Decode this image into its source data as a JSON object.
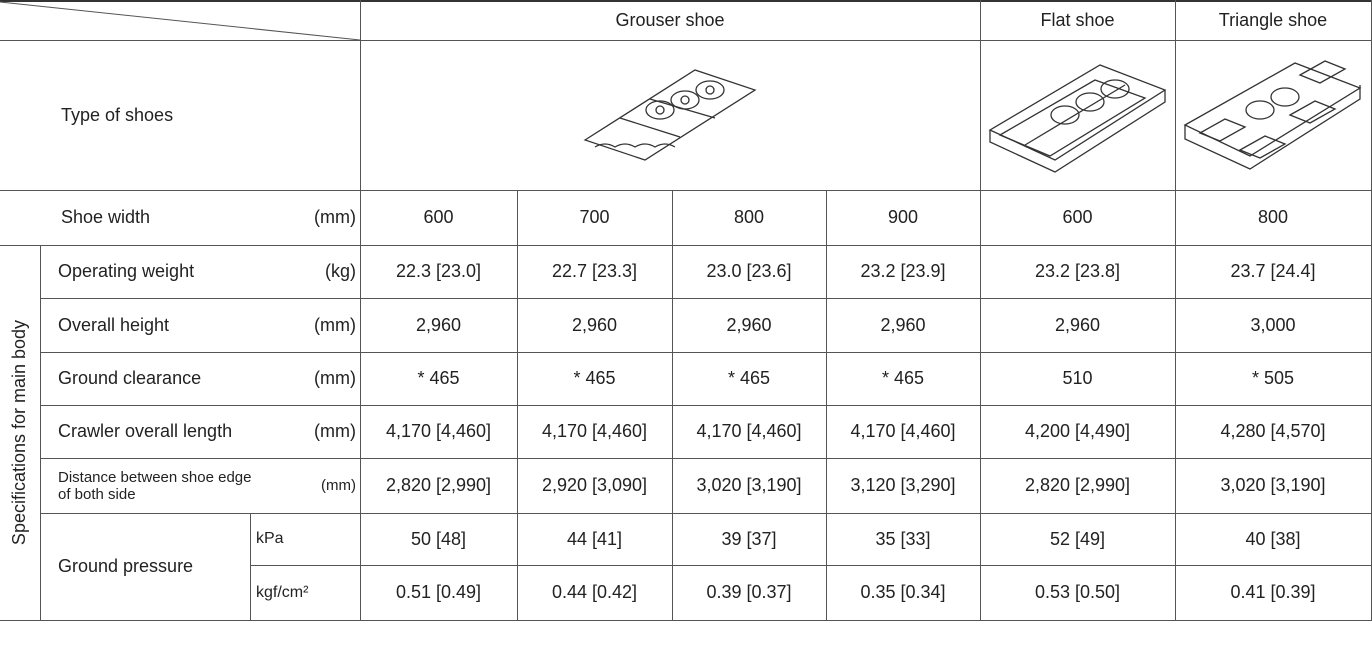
{
  "headers": {
    "grouser": "Grouser shoe",
    "flat": "Flat shoe",
    "triangle": "Triangle shoe"
  },
  "type_label": "Type of shoes",
  "shoe_width": {
    "label": "Shoe width",
    "unit": "(mm)",
    "values": [
      "600",
      "700",
      "800",
      "900",
      "600",
      "800"
    ]
  },
  "side_label": "Specifications for main body",
  "rows": [
    {
      "label": "Operating weight",
      "unit": "(kg)",
      "values": [
        "22.3 [23.0]",
        "22.7 [23.3]",
        "23.0 [23.6]",
        "23.2 [23.9]",
        "23.2 [23.8]",
        "23.7 [24.4]"
      ]
    },
    {
      "label": "Overall height",
      "unit": "(mm)",
      "values": [
        "2,960",
        "2,960",
        "2,960",
        "2,960",
        "2,960",
        "3,000"
      ]
    },
    {
      "label": "Ground clearance",
      "unit": "(mm)",
      "values": [
        "* 465",
        "* 465",
        "* 465",
        "* 465",
        "510",
        "* 505"
      ]
    },
    {
      "label": "Crawler overall length",
      "unit": "(mm)",
      "values": [
        "4,170 [4,460]",
        "4,170 [4,460]",
        "4,170 [4,460]",
        "4,170 [4,460]",
        "4,200 [4,490]",
        "4,280 [4,570]"
      ]
    },
    {
      "label": "Distance between shoe edge of both side",
      "unit": "(mm)",
      "values": [
        "2,820 [2,990]",
        "2,920 [3,090]",
        "3,020 [3,190]",
        "3,120 [3,290]",
        "2,820 [2,990]",
        "3,020 [3,190]"
      ]
    }
  ],
  "ground_pressure": {
    "label": "Ground pressure",
    "rows": [
      {
        "unit": "kPa",
        "values": [
          "50 [48]",
          "44 [41]",
          "39 [37]",
          "35 [33]",
          "52 [49]",
          "40 [38]"
        ]
      },
      {
        "unit": "kgf/cm²",
        "values": [
          "0.51 [0.49]",
          "0.44 [0.42]",
          "0.39 [0.37]",
          "0.35 [0.34]",
          "0.53 [0.50]",
          "0.41 [0.39]"
        ]
      }
    ]
  }
}
